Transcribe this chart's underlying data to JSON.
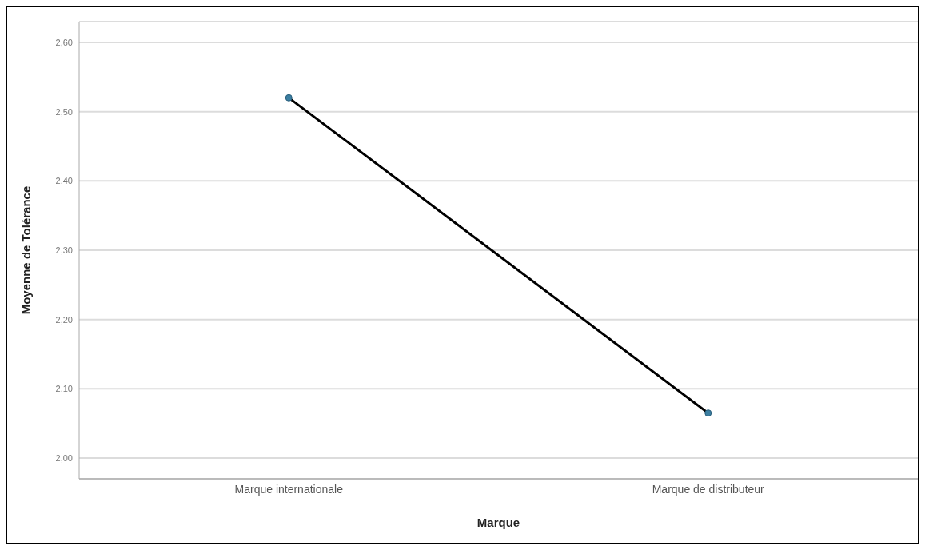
{
  "chart_data": {
    "type": "line",
    "xlabel": "Marque",
    "ylabel": "Moyenne de Tolérance",
    "categories": [
      "Marque internationale",
      "Marque de distributeur"
    ],
    "series": [
      {
        "color": "#000000",
        "values": [
          2.52,
          2.065
        ]
      }
    ],
    "ylim": [
      1.97,
      2.63
    ],
    "yticks": [
      {
        "value": 2.0,
        "label": "2,00"
      },
      {
        "value": 2.1,
        "label": "2,10"
      },
      {
        "value": 2.2,
        "label": "2,20"
      },
      {
        "value": 2.3,
        "label": "2,30"
      },
      {
        "value": 2.4,
        "label": "2,40"
      },
      {
        "value": 2.5,
        "label": "2,50"
      },
      {
        "value": 2.6,
        "label": "2,60"
      }
    ],
    "grid": "y",
    "marker": "circle",
    "line_style": "solid",
    "legend": false
  }
}
